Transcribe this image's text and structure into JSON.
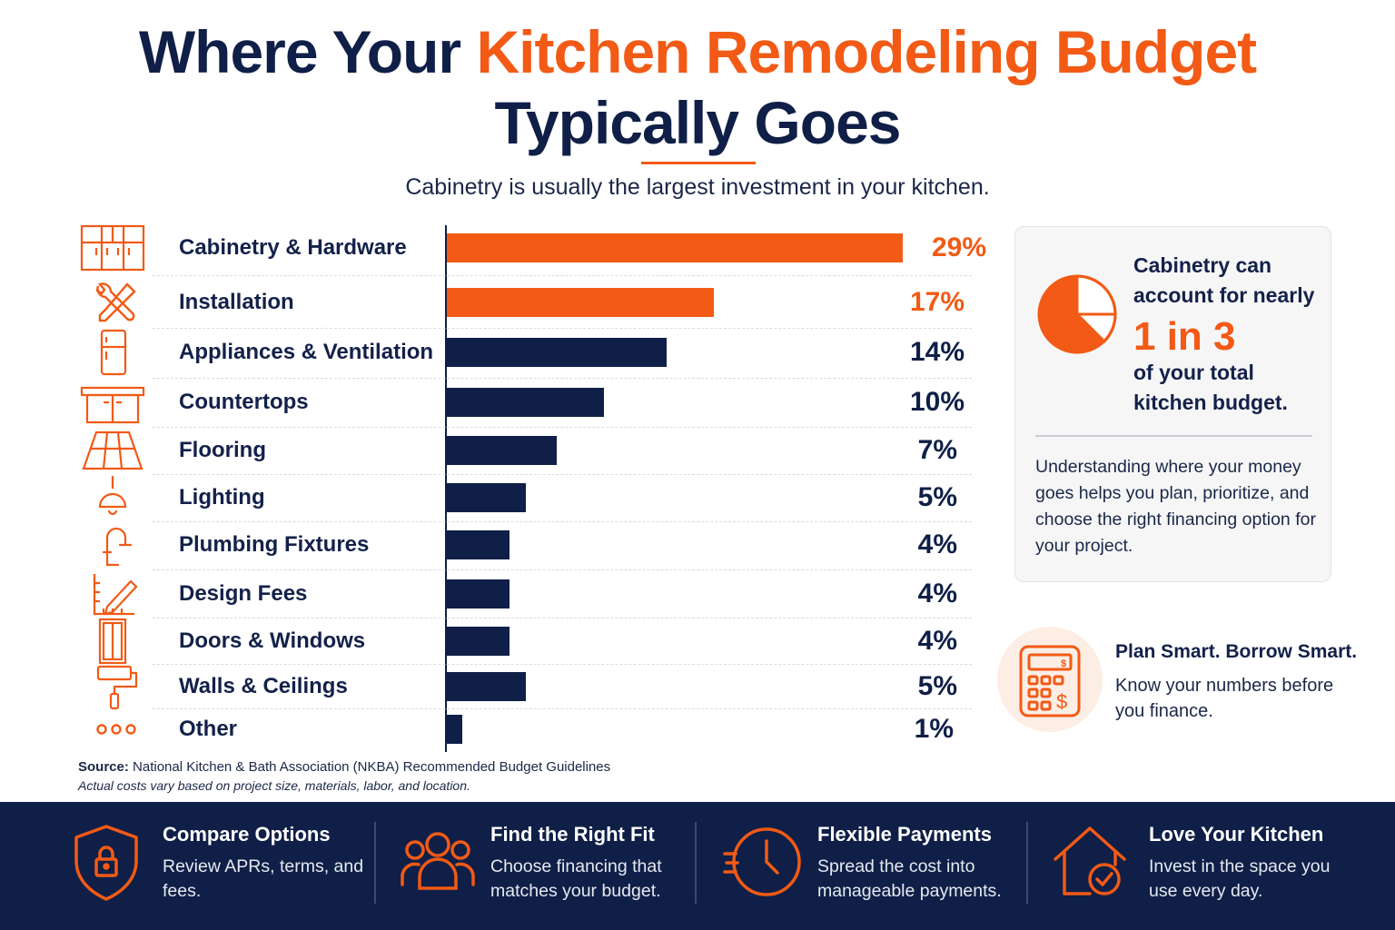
{
  "title": {
    "part1": "Where Your ",
    "part2": "Kitchen Remodeling Budget",
    "part3": "Typically Goes"
  },
  "subtitle": "Cabinetry is usually the largest investment in your kitchen.",
  "chart_data": {
    "type": "bar",
    "orientation": "horizontal",
    "title": "Where Your Kitchen Remodeling Budget Typically Goes",
    "categories": [
      "Cabinetry & Hardware",
      "Installation",
      "Appliances & Ventilation",
      "Countertops",
      "Flooring",
      "Lighting",
      "Plumbing Fixtures",
      "Design Fees",
      "Doors & Windows",
      "Walls & Ceilings",
      "Other"
    ],
    "values": [
      29,
      17,
      14,
      10,
      7,
      5,
      4,
      4,
      4,
      5,
      1
    ],
    "value_labels": [
      "29%",
      "17%",
      "14%",
      "10%",
      "7%",
      "5%",
      "4%",
      "4%",
      "4%",
      "5%",
      "1%"
    ],
    "icons": [
      "cabinet-icon",
      "tools-icon",
      "refrigerator-icon",
      "countertop-icon",
      "flooring-icon",
      "lamp-icon",
      "faucet-icon",
      "ruler-pencil-icon",
      "door-icon",
      "paint-roller-icon",
      "dots-icon"
    ],
    "highlight_count": 2,
    "highlight_color": "#f25a15",
    "bar_color": "#0f1f47",
    "xlim": [
      0,
      29
    ],
    "grid": false,
    "legend": "none"
  },
  "callout": {
    "line1": "Cabinetry can",
    "line2": "account for nearly",
    "big": "1 in 3",
    "line3": "of your total",
    "line4": "kitchen budget.",
    "body": "Understanding where your money goes helps you plan, prioritize, and choose the right financing option for your project.",
    "icon": "pie-chart-icon"
  },
  "plan": {
    "title": "Plan Smart. Borrow Smart.",
    "body": "Know your numbers before you finance.",
    "icon": "calculator-icon"
  },
  "source": {
    "label": "Source:",
    "text": "National Kitchen & Bath Association (NKBA) Recommended Budget Guidelines",
    "note": "Actual costs vary based on project size, materials, labor, and location."
  },
  "footer": [
    {
      "title": "Compare Options",
      "text": "Review APRs, terms, and fees.",
      "icon": "shield-lock-icon"
    },
    {
      "title": "Find the Right Fit",
      "text": "Choose financing that matches your budget.",
      "icon": "people-icon"
    },
    {
      "title": "Flexible Payments",
      "text": "Spread the cost into manageable payments.",
      "icon": "clock-icon"
    },
    {
      "title": "Love Your Kitchen",
      "text": "Invest in the space you use every day.",
      "icon": "home-check-icon"
    }
  ],
  "colors": {
    "accent": "#f25a15",
    "navy": "#0f1f47",
    "card_bg": "#f6f6f7"
  }
}
